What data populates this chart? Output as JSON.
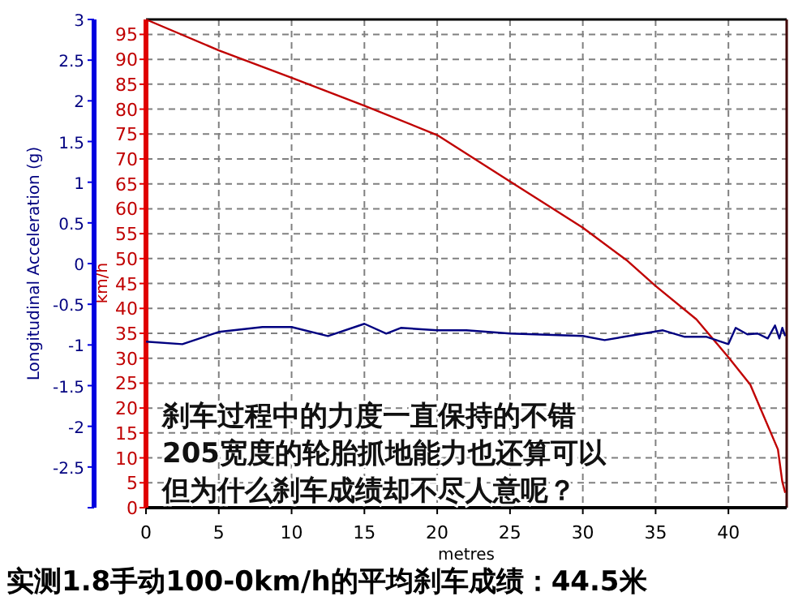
{
  "chart_data": {
    "type": "line",
    "title": "实测1.8手动100-0km/h的平均刹车成绩：44.5米",
    "xlabel": "metres",
    "ylabel": "km/h",
    "y2label": "Longitudinal Acceleration (g)",
    "annotations": [
      "刹车过程中的力度一直保持的不错",
      "205宽度的轮胎抓地能力也还算可以",
      "但为什么刹车成绩却不尽人意呢？"
    ],
    "xlim": [
      0,
      44
    ],
    "xticks": [
      0,
      5,
      10,
      15,
      20,
      25,
      30,
      35,
      40
    ],
    "ylim": [
      0,
      98
    ],
    "yticks": [
      0,
      5,
      10,
      15,
      20,
      25,
      30,
      35,
      40,
      45,
      50,
      55,
      60,
      65,
      70,
      75,
      80,
      85,
      90,
      95
    ],
    "y2lim": [
      -3,
      3
    ],
    "y2ticks": [
      {
        "value": -3,
        "label": null
      },
      -2.5,
      -2,
      -1.5,
      -1,
      -0.5,
      0,
      0.5,
      1,
      1.5,
      2,
      2.5,
      3
    ],
    "grid": true,
    "series": [
      {
        "color": "#c00000",
        "x": [
          0,
          5,
          10,
          15,
          20,
          25,
          30,
          33,
          35,
          37.8,
          40,
          41.5,
          43.4,
          43.7,
          43.9
        ],
        "values": [
          98,
          91.8,
          86.3,
          80.7,
          74.8,
          65.5,
          56.2,
          49.7,
          44.5,
          37.8,
          30.2,
          24.7,
          11.7,
          5.2,
          3
        ]
      },
      {
        "color": "#000080",
        "axis": "y2",
        "x": [
          0,
          2.5,
          5,
          8,
          10,
          12.5,
          15,
          16.5,
          17.5,
          20,
          22,
          25,
          30,
          31.5,
          35.5,
          37,
          38.5,
          40,
          40.5,
          41.3,
          42,
          42.7,
          43.2,
          43.5,
          43.7,
          43.9
        ],
        "values": [
          -0.96,
          -0.99,
          -0.84,
          -0.78,
          -0.78,
          -0.89,
          -0.74,
          -0.86,
          -0.79,
          -0.82,
          -0.82,
          -0.86,
          -0.89,
          -0.94,
          -0.82,
          -0.9,
          -0.9,
          -0.99,
          -0.79,
          -0.87,
          -0.86,
          -0.92,
          -0.76,
          -0.92,
          -0.79,
          -0.89
        ]
      }
    ]
  }
}
